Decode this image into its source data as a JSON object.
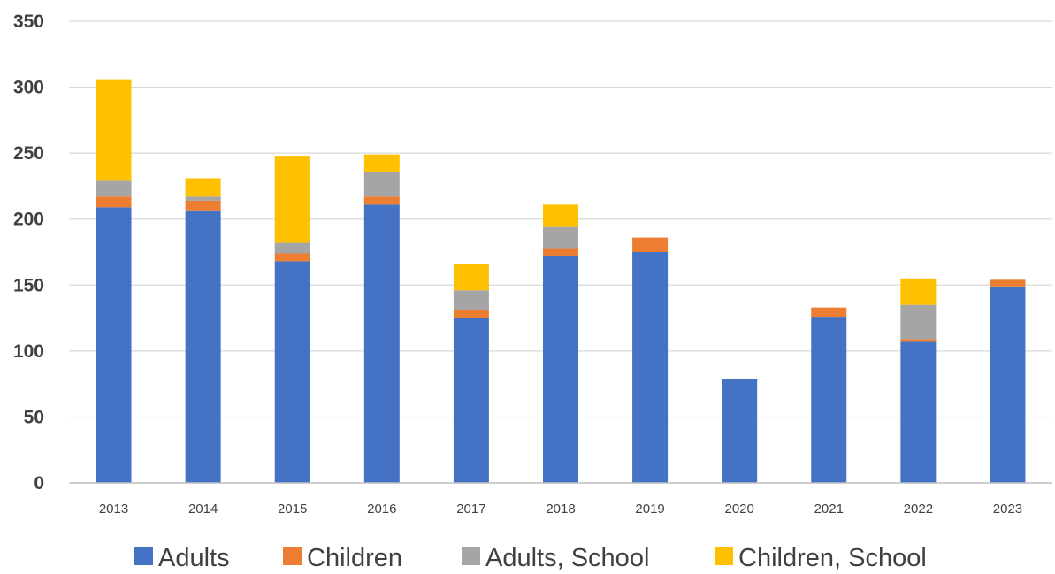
{
  "chart_data": {
    "type": "bar",
    "stacked": true,
    "categories": [
      "2013",
      "2014",
      "2015",
      "2016",
      "2017",
      "2018",
      "2019",
      "2020",
      "2021",
      "2022",
      "2023"
    ],
    "series": [
      {
        "name": "Adults",
        "color": "#4472C4",
        "values": [
          209,
          206,
          168,
          211,
          125,
          172,
          175,
          79,
          126,
          107,
          149
        ]
      },
      {
        "name": "Children",
        "color": "#ED7D31",
        "values": [
          8,
          8,
          6,
          6,
          6,
          6,
          11,
          0,
          7,
          2,
          5
        ]
      },
      {
        "name": "Adults, School",
        "color": "#A5A5A5",
        "values": [
          12,
          3,
          8,
          19,
          15,
          16,
          0,
          0,
          0,
          26,
          0
        ]
      },
      {
        "name": "Children, School",
        "color": "#FFC000",
        "values": [
          77,
          14,
          66,
          13,
          20,
          17,
          0,
          0,
          0,
          20,
          0
        ]
      }
    ],
    "ylim": [
      0,
      350
    ],
    "yticks": [
      0,
      50,
      100,
      150,
      200,
      250,
      300,
      350
    ],
    "grid": true,
    "legend": "bottom"
  }
}
